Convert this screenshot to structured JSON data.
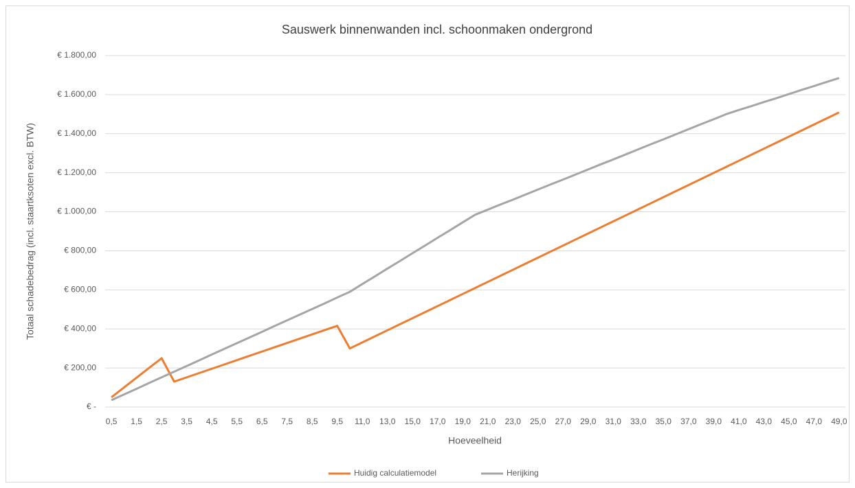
{
  "chart_data": {
    "type": "line",
    "title": "Sauswerk binnenwanden incl. schoonmaken ondergrond",
    "x_label": "Hoeveelheid",
    "y_label": "Totaal schadebedrag (incl. staartksoten excl. BTW)",
    "categories": [
      "0,5",
      null,
      "1,5",
      null,
      "2,5",
      null,
      "3,5",
      null,
      "4,5",
      null,
      "5,5",
      null,
      "6,5",
      null,
      "7,5",
      null,
      "8,5",
      null,
      "9,5",
      null,
      "11,0",
      null,
      "13,0",
      null,
      "15,0",
      null,
      "17,0",
      null,
      "19,0",
      null,
      "21,0",
      null,
      "23,0",
      null,
      "25,0",
      null,
      "27,0",
      null,
      "29,0",
      null,
      "31,0",
      null,
      "33,0",
      null,
      "35,0",
      null,
      "37,0",
      null,
      "39,0",
      null,
      "41,0",
      null,
      "43,0",
      null,
      "45,0",
      null,
      "47,0",
      null,
      "49,0"
    ],
    "series": [
      {
        "name": "Huidig calculatiemodel",
        "color": "#ed7d31",
        "values": [
          50,
          100,
          150,
          200,
          250,
          130,
          152,
          174,
          196,
          218,
          240,
          262,
          284,
          306,
          328,
          350,
          372,
          394,
          416,
          300,
          331,
          362,
          393,
          424,
          455,
          486,
          517,
          548,
          579,
          610,
          641,
          672,
          703,
          734,
          765,
          796,
          827,
          858,
          889,
          920,
          951,
          982,
          1013,
          1044,
          1075,
          1106,
          1137,
          1168,
          1199,
          1230,
          1261,
          1292,
          1323,
          1354,
          1385,
          1416,
          1447,
          1478,
          1509
        ]
      },
      {
        "name": "Herijking",
        "color": "#a5a5a5",
        "values": [
          35,
          64,
          93,
          123,
          152,
          181,
          210,
          239,
          269,
          298,
          327,
          356,
          385,
          415,
          444,
          473,
          502,
          531,
          561,
          590,
          630,
          669,
          709,
          748,
          788,
          827,
          867,
          906,
          946,
          985,
          1011,
          1037,
          1062,
          1088,
          1114,
          1140,
          1165,
          1191,
          1217,
          1243,
          1268,
          1294,
          1320,
          1346,
          1371,
          1397,
          1423,
          1449,
          1474,
          1500,
          1521,
          1541,
          1562,
          1582,
          1603,
          1624,
          1644,
          1665,
          1685
        ]
      }
    ],
    "ylim": [
      0,
      1800
    ],
    "yticks": [
      {
        "value": 0,
        "label": "€ -"
      },
      {
        "value": 200,
        "label": "€ 200,00"
      },
      {
        "value": 400,
        "label": "€ 400,00"
      },
      {
        "value": 600,
        "label": "€ 600,00"
      },
      {
        "value": 800,
        "label": "€ 800,00"
      },
      {
        "value": 1000,
        "label": "€ 1.000,00"
      },
      {
        "value": 1200,
        "label": "€ 1.200,00"
      },
      {
        "value": 1400,
        "label": "€ 1.400,00"
      },
      {
        "value": 1600,
        "label": "€ 1.600,00"
      },
      {
        "value": 1800,
        "label": "€ 1.800,00"
      }
    ],
    "grid": true,
    "legend": "bottom"
  }
}
